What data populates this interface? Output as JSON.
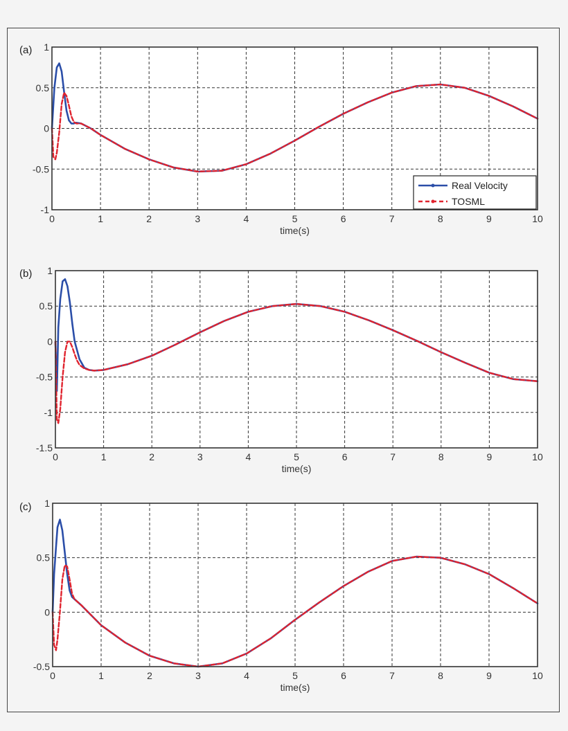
{
  "figure": {
    "legend": {
      "entries": [
        {
          "label": "Real Velocity",
          "color": "#2b4ea8",
          "style": "solid"
        },
        {
          "label": "TOSML",
          "color": "#e0232e",
          "style": "dashed"
        }
      ]
    },
    "xlabel": "time(s)"
  },
  "chart_data": [
    {
      "type": "line",
      "panel": "(a)",
      "title": "",
      "xlabel": "time(s)",
      "ylabel": "",
      "xlim": [
        0,
        10
      ],
      "ylim": [
        -1,
        1
      ],
      "xticks": [
        0,
        1,
        2,
        3,
        4,
        5,
        6,
        7,
        8,
        9,
        10
      ],
      "yticks": [
        -1,
        -0.5,
        0,
        0.5,
        1
      ],
      "ytick_labels": [
        "-1",
        "-0.5",
        "0",
        "0.5",
        "1"
      ],
      "grid": true,
      "legend_position": "lower right",
      "series": [
        {
          "name": "Real Velocity",
          "color": "#2b4ea8",
          "x": [
            0,
            0.05,
            0.1,
            0.15,
            0.2,
            0.25,
            0.3,
            0.35,
            0.4,
            0.45,
            0.5,
            0.6,
            0.8,
            1,
            1.5,
            2,
            2.5,
            3,
            3.5,
            4,
            4.5,
            5,
            5.5,
            6,
            6.5,
            7,
            7.5,
            8,
            8.5,
            9,
            9.5,
            10
          ],
          "y": [
            0,
            0.5,
            0.75,
            0.8,
            0.7,
            0.45,
            0.22,
            0.1,
            0.06,
            0.06,
            0.07,
            0.06,
            0.0,
            -0.08,
            -0.25,
            -0.38,
            -0.48,
            -0.53,
            -0.52,
            -0.44,
            -0.31,
            -0.15,
            0.02,
            0.18,
            0.32,
            0.44,
            0.52,
            0.54,
            0.5,
            0.4,
            0.27,
            0.12
          ]
        },
        {
          "name": "TOSML",
          "color": "#e0232e",
          "x": [
            0,
            0.03,
            0.07,
            0.1,
            0.15,
            0.2,
            0.25,
            0.3,
            0.35,
            0.4,
            0.45,
            0.5,
            0.6,
            0.8,
            1,
            1.5,
            2,
            2.5,
            3,
            3.5,
            4,
            4.5,
            5,
            5.5,
            6,
            6.5,
            7,
            7.5,
            8,
            8.5,
            9,
            9.5,
            10
          ],
          "y": [
            0,
            -0.35,
            -0.38,
            -0.3,
            -0.05,
            0.3,
            0.44,
            0.4,
            0.28,
            0.15,
            0.08,
            0.06,
            0.06,
            0.0,
            -0.08,
            -0.25,
            -0.38,
            -0.48,
            -0.53,
            -0.52,
            -0.44,
            -0.31,
            -0.15,
            0.02,
            0.18,
            0.32,
            0.44,
            0.52,
            0.54,
            0.5,
            0.4,
            0.27,
            0.12
          ]
        }
      ]
    },
    {
      "type": "line",
      "panel": "(b)",
      "title": "",
      "xlabel": "time(s)",
      "ylabel": "",
      "xlim": [
        0,
        10
      ],
      "ylim": [
        -1.5,
        1
      ],
      "xticks": [
        0,
        1,
        2,
        3,
        4,
        5,
        6,
        7,
        8,
        9,
        10
      ],
      "yticks": [
        -1.5,
        -1,
        -0.5,
        0,
        0.5,
        1
      ],
      "ytick_labels": [
        "-1.5",
        "-1",
        "-0.5",
        "0",
        "0.5",
        "1"
      ],
      "grid": true,
      "series": [
        {
          "name": "Real Velocity",
          "color": "#2b4ea8",
          "x": [
            0,
            0.03,
            0.06,
            0.1,
            0.15,
            0.2,
            0.25,
            0.3,
            0.35,
            0.4,
            0.5,
            0.6,
            0.7,
            0.8,
            1,
            1.5,
            2,
            2.5,
            3,
            3.5,
            4,
            4.5,
            5,
            5.5,
            6,
            6.5,
            7,
            7.5,
            8,
            8.5,
            9,
            9.5,
            10
          ],
          "y": [
            0,
            -0.7,
            0.2,
            0.6,
            0.85,
            0.88,
            0.78,
            0.55,
            0.25,
            0.0,
            -0.25,
            -0.37,
            -0.4,
            -0.41,
            -0.4,
            -0.32,
            -0.2,
            -0.04,
            0.13,
            0.29,
            0.42,
            0.5,
            0.53,
            0.5,
            0.42,
            0.3,
            0.16,
            0.01,
            -0.15,
            -0.3,
            -0.44,
            -0.53,
            -0.56
          ]
        },
        {
          "name": "TOSML",
          "color": "#e0232e",
          "x": [
            0,
            0.03,
            0.06,
            0.1,
            0.15,
            0.2,
            0.25,
            0.3,
            0.35,
            0.4,
            0.45,
            0.5,
            0.6,
            0.7,
            0.8,
            1,
            1.5,
            2,
            2.5,
            3,
            3.5,
            4,
            4.5,
            5,
            5.5,
            6,
            6.5,
            7,
            7.5,
            8,
            8.5,
            9,
            9.5,
            10
          ],
          "y": [
            0,
            -1.1,
            -1.15,
            -0.95,
            -0.5,
            -0.15,
            0.0,
            0.0,
            -0.08,
            -0.18,
            -0.27,
            -0.33,
            -0.38,
            -0.4,
            -0.41,
            -0.4,
            -0.32,
            -0.2,
            -0.04,
            0.13,
            0.29,
            0.42,
            0.5,
            0.53,
            0.5,
            0.42,
            0.3,
            0.16,
            0.01,
            -0.15,
            -0.3,
            -0.44,
            -0.53,
            -0.56
          ]
        }
      ]
    },
    {
      "type": "line",
      "panel": "(c)",
      "title": "",
      "xlabel": "time(s)",
      "ylabel": "",
      "xlim": [
        0,
        10
      ],
      "ylim": [
        -0.5,
        1
      ],
      "xticks": [
        0,
        1,
        2,
        3,
        4,
        5,
        6,
        7,
        8,
        9,
        10
      ],
      "yticks": [
        -0.5,
        0,
        0.5,
        1
      ],
      "ytick_labels": [
        "-0.5",
        "0",
        "0.5",
        "1"
      ],
      "grid": true,
      "series": [
        {
          "name": "Real Velocity",
          "color": "#2b4ea8",
          "x": [
            0,
            0.03,
            0.07,
            0.1,
            0.15,
            0.2,
            0.25,
            0.3,
            0.35,
            0.4,
            0.45,
            0.5,
            0.6,
            0.8,
            1,
            1.5,
            2,
            2.5,
            3,
            3.5,
            4,
            4.5,
            5,
            5.5,
            6,
            6.5,
            7,
            7.5,
            8,
            8.5,
            9,
            9.5,
            10
          ],
          "y": [
            0,
            0.35,
            0.6,
            0.78,
            0.85,
            0.75,
            0.55,
            0.35,
            0.2,
            0.14,
            0.12,
            0.1,
            0.06,
            -0.03,
            -0.12,
            -0.28,
            -0.4,
            -0.47,
            -0.5,
            -0.47,
            -0.38,
            -0.24,
            -0.07,
            0.09,
            0.24,
            0.37,
            0.47,
            0.51,
            0.5,
            0.44,
            0.35,
            0.22,
            0.08
          ]
        },
        {
          "name": "TOSML",
          "color": "#e0232e",
          "x": [
            0,
            0.03,
            0.07,
            0.1,
            0.15,
            0.2,
            0.25,
            0.3,
            0.35,
            0.4,
            0.45,
            0.5,
            0.6,
            0.8,
            1,
            1.5,
            2,
            2.5,
            3,
            3.5,
            4,
            4.5,
            5,
            5.5,
            6,
            6.5,
            7,
            7.5,
            8,
            8.5,
            9,
            9.5,
            10
          ],
          "y": [
            0,
            -0.3,
            -0.35,
            -0.25,
            0.0,
            0.3,
            0.43,
            0.42,
            0.3,
            0.17,
            0.12,
            0.1,
            0.06,
            -0.03,
            -0.12,
            -0.28,
            -0.4,
            -0.47,
            -0.5,
            -0.47,
            -0.38,
            -0.24,
            -0.07,
            0.09,
            0.24,
            0.37,
            0.47,
            0.51,
            0.5,
            0.44,
            0.35,
            0.22,
            0.08
          ]
        }
      ]
    }
  ]
}
